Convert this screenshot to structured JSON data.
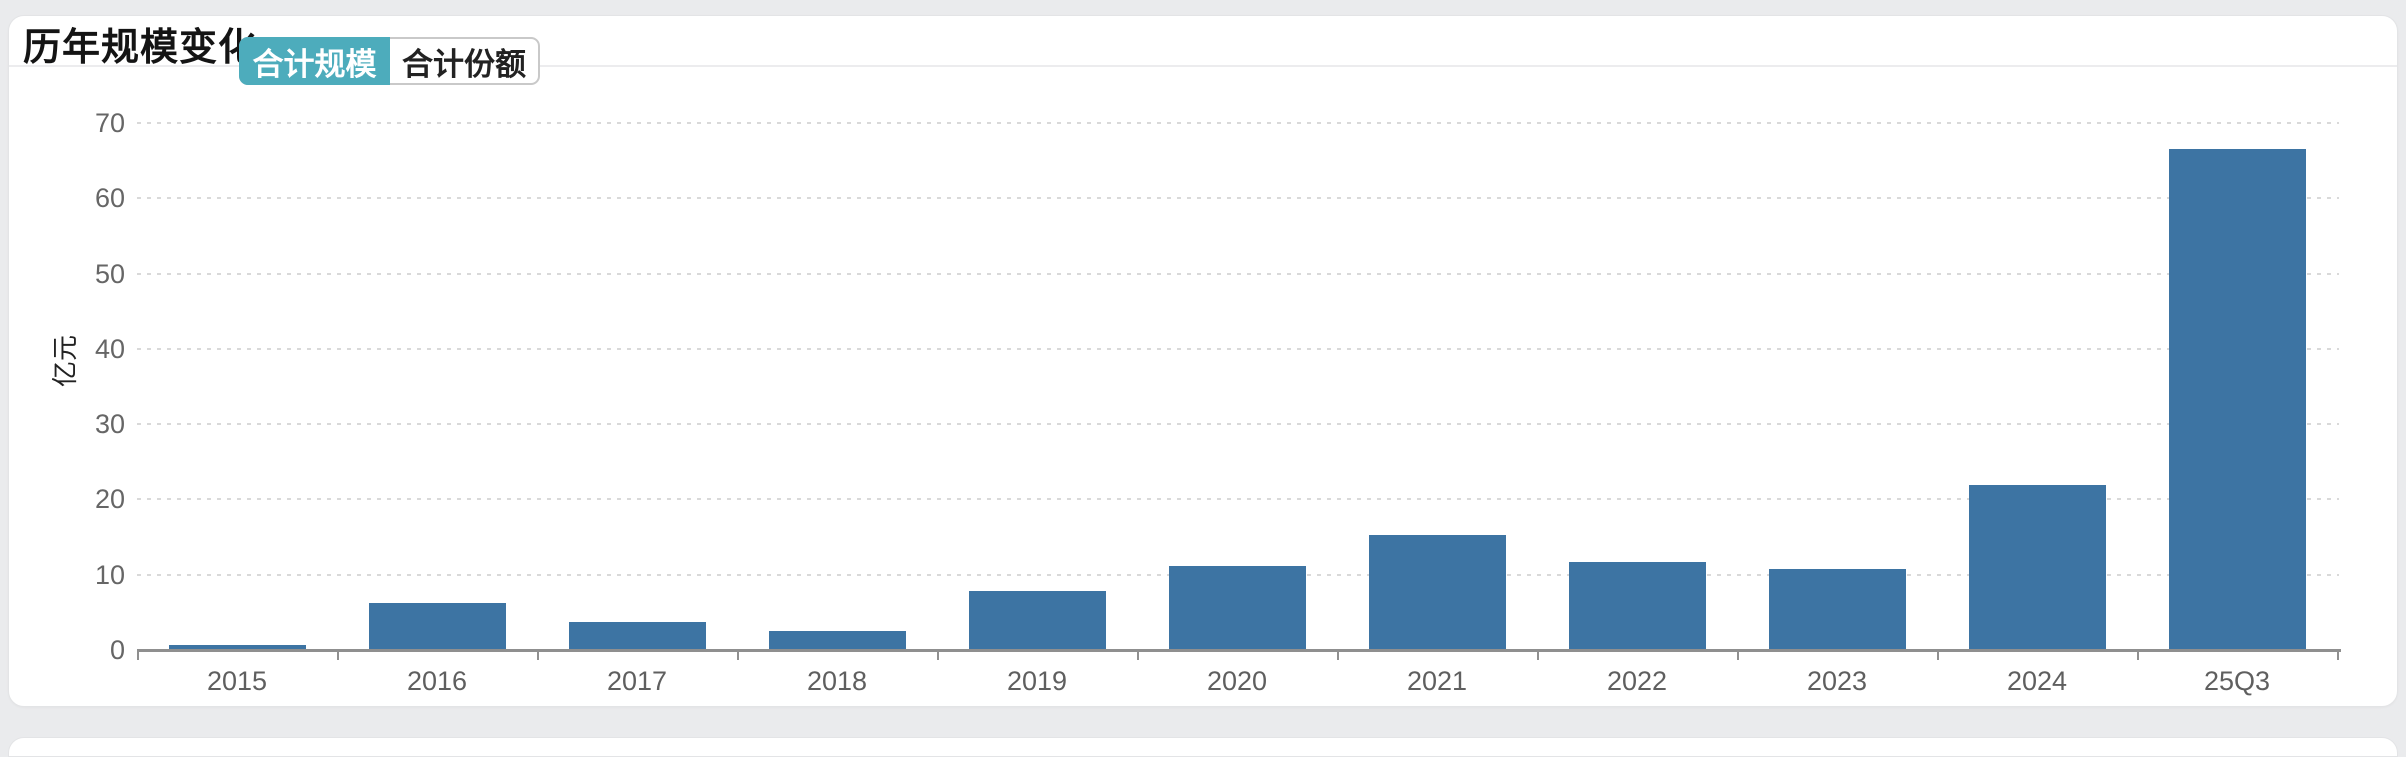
{
  "header": {
    "title": "历年规模变化",
    "tabs": [
      {
        "label": "合计规模",
        "active": true
      },
      {
        "label": "合计份额",
        "active": false
      }
    ]
  },
  "chart_data": {
    "type": "bar",
    "title": "历年规模变化",
    "categories": [
      "2015",
      "2016",
      "2017",
      "2018",
      "2019",
      "2020",
      "2021",
      "2022",
      "2023",
      "2024",
      "25Q3"
    ],
    "values": [
      0.7,
      6.2,
      3.7,
      2.5,
      7.8,
      11.2,
      15.3,
      11.7,
      10.8,
      21.9,
      66.5
    ],
    "xlabel": "",
    "ylabel": "亿元",
    "ylim": [
      0,
      70
    ],
    "ytick_step": 10,
    "grid": true,
    "legend_position": "none",
    "bar_color": "#3d74a3"
  },
  "colors": {
    "accent_teal": "#4dacbc",
    "bar_blue": "#3d74a3",
    "page_background": "#eaebed",
    "axis_gray": "#8f8f8f",
    "label_gray": "#666666"
  }
}
